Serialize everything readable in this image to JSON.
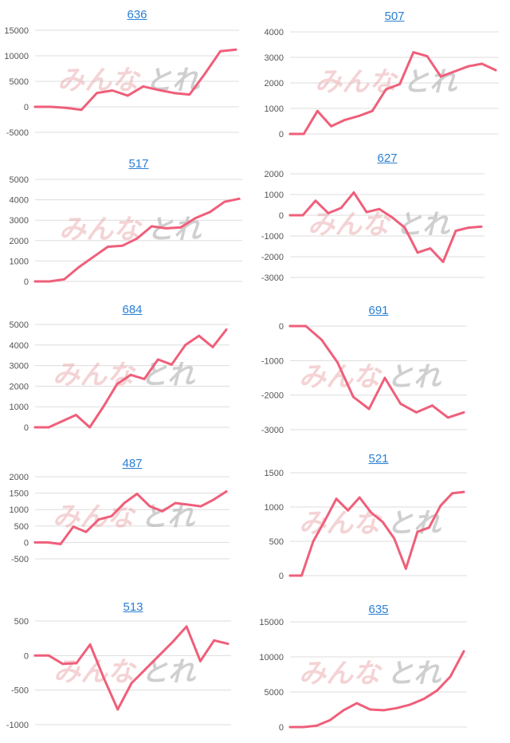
{
  "watermark": {
    "text_a": "みんな",
    "text_b": "とれ",
    "color_a": "#e8a0a4",
    "color_b": "#a9a9a9"
  },
  "colors": {
    "series": "#ef5f7a",
    "title_link": "#2a7fd4",
    "grid": "#dddddd",
    "tick": "#555555"
  },
  "chart_data": [
    {
      "type": "line",
      "title": "636",
      "yticks": [
        15000,
        10000,
        5000,
        0,
        -5000
      ],
      "ylim": [
        -5000,
        15000
      ],
      "grid": true,
      "series": [
        {
          "values": [
            0,
            0,
            -200,
            -600,
            2700,
            3200,
            2200,
            4000,
            3300,
            2700,
            2400,
            6500,
            10900,
            11200
          ]
        }
      ]
    },
    {
      "type": "line",
      "title": "507",
      "yticks": [
        4000,
        3000,
        2000,
        1000,
        0
      ],
      "ylim": [
        0,
        4000
      ],
      "grid": true,
      "series": [
        {
          "values": [
            0,
            0,
            900,
            300,
            550,
            700,
            900,
            1750,
            1950,
            3200,
            3050,
            2250,
            2450,
            2650,
            2750,
            2500
          ]
        }
      ]
    },
    {
      "type": "line",
      "title": "517",
      "yticks": [
        5000,
        4000,
        3000,
        2000,
        1000,
        0
      ],
      "ylim": [
        0,
        5000
      ],
      "grid": true,
      "series": [
        {
          "values": [
            0,
            0,
            100,
            700,
            1200,
            1700,
            1750,
            2100,
            2700,
            2600,
            2650,
            3100,
            3400,
            3900,
            4050
          ]
        }
      ]
    },
    {
      "type": "line",
      "title": "627",
      "yticks": [
        2000,
        1000,
        0,
        -1000,
        -2000,
        -3000
      ],
      "ylim": [
        -3000,
        2000
      ],
      "grid": true,
      "series": [
        {
          "values": [
            0,
            0,
            700,
            100,
            350,
            1100,
            150,
            300,
            -100,
            -600,
            -1800,
            -1600,
            -2250,
            -750,
            -600,
            -550
          ]
        }
      ]
    },
    {
      "type": "line",
      "title": "684",
      "yticks": [
        5000,
        4000,
        3000,
        2000,
        1000,
        0
      ],
      "ylim": [
        0,
        5000
      ],
      "grid": true,
      "series": [
        {
          "values": [
            0,
            0,
            300,
            600,
            0,
            1000,
            2100,
            2550,
            2350,
            3300,
            3050,
            4000,
            4450,
            3900,
            4750
          ]
        }
      ]
    },
    {
      "type": "line",
      "title": "691",
      "yticks": [
        0,
        -1000,
        -2000,
        -3000
      ],
      "ylim": [
        -3000,
        0
      ],
      "grid": true,
      "series": [
        {
          "values": [
            0,
            0,
            -400,
            -1050,
            -2050,
            -2400,
            -1500,
            -2250,
            -2500,
            -2300,
            -2650,
            -2500
          ]
        }
      ]
    },
    {
      "type": "line",
      "title": "487",
      "yticks": [
        2000,
        1500,
        1000,
        500,
        0,
        -500
      ],
      "ylim": [
        -500,
        2000
      ],
      "grid": true,
      "series": [
        {
          "values": [
            0,
            0,
            -50,
            480,
            320,
            700,
            800,
            1200,
            1480,
            1100,
            950,
            1200,
            1150,
            1100,
            1300,
            1550
          ]
        }
      ]
    },
    {
      "type": "line",
      "title": "521",
      "yticks": [
        1500,
        1000,
        500,
        0
      ],
      "ylim": [
        0,
        1500
      ],
      "grid": true,
      "series": [
        {
          "values": [
            0,
            0,
            500,
            800,
            1120,
            950,
            1140,
            920,
            780,
            540,
            100,
            640,
            700,
            1020,
            1200,
            1220
          ]
        }
      ]
    },
    {
      "type": "line",
      "title": "513",
      "yticks": [
        500,
        0,
        -500,
        -1000
      ],
      "ylim": [
        -1000,
        500
      ],
      "grid": true,
      "series": [
        {
          "values": [
            0,
            0,
            -120,
            -110,
            160,
            -330,
            -780,
            -400,
            -200,
            0,
            200,
            420,
            -80,
            220,
            170
          ]
        }
      ]
    },
    {
      "type": "line",
      "title": "635",
      "yticks": [
        15000,
        10000,
        5000,
        0
      ],
      "ylim": [
        0,
        15000
      ],
      "grid": true,
      "series": [
        {
          "values": [
            0,
            0,
            200,
            1000,
            2400,
            3400,
            2500,
            2400,
            2700,
            3200,
            4000,
            5200,
            7200,
            10800
          ]
        }
      ]
    }
  ]
}
